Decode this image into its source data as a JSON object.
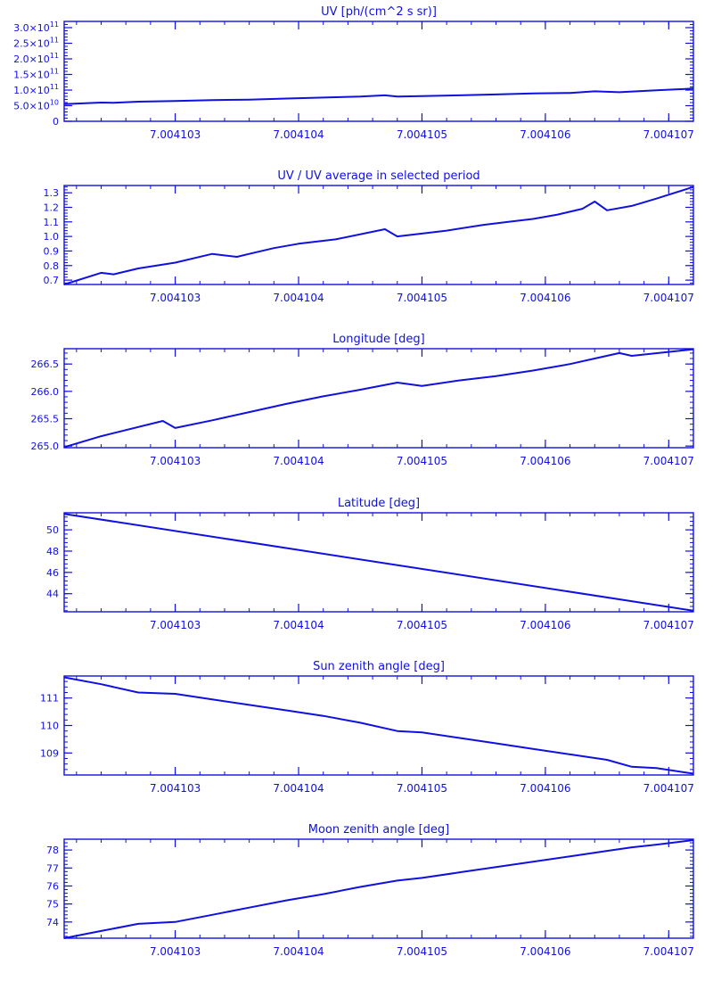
{
  "colors": {
    "ink": "#1010e0",
    "background": "#ffffff"
  },
  "chart_data": [
    {
      "type": "line",
      "title": "UV [ph/(cm^2 s sr)]",
      "xlim": [
        7.0041021,
        7.0041072
      ],
      "xticks": [
        7.004103,
        7.004104,
        7.004105,
        7.004106,
        7.004107
      ],
      "xtick_labels": [
        "7.004103",
        "7.004104",
        "7.004105",
        "7.004106",
        "7.004107"
      ],
      "ylim": [
        0,
        320000000000.0
      ],
      "yticks": [
        0,
        50000000000.0,
        100000000000.0,
        150000000000.0,
        200000000000.0,
        250000000000.0,
        300000000000.0
      ],
      "ytick_labels": [
        {
          "mant": "0",
          "exp": ""
        },
        {
          "mant": "5.0×10",
          "exp": "10"
        },
        {
          "mant": "1.0×10",
          "exp": "11"
        },
        {
          "mant": "1.5×10",
          "exp": "11"
        },
        {
          "mant": "2.0×10",
          "exp": "11"
        },
        {
          "mant": "2.5×10",
          "exp": "11"
        },
        {
          "mant": "3.0×10",
          "exp": "11"
        }
      ],
      "x": [
        7.0041021,
        7.0041024,
        7.0041025,
        7.0041027,
        7.004103,
        7.0041033,
        7.0041036,
        7.0041039,
        7.0041042,
        7.0041045,
        7.0041047,
        7.0041048,
        7.004105,
        7.0041053,
        7.0041056,
        7.0041059,
        7.0041062,
        7.0041064,
        7.0041066,
        7.0041069,
        7.0041072
      ],
      "y": [
        55000000000.0,
        60000000000.0,
        59000000000.0,
        63000000000.0,
        65000000000.0,
        68000000000.0,
        69000000000.0,
        73000000000.0,
        76000000000.0,
        79000000000.0,
        83000000000.0,
        79000000000.0,
        81000000000.0,
        83000000000.0,
        86000000000.0,
        89000000000.0,
        91000000000.0,
        96000000000.0,
        93000000000.0,
        99000000000.0,
        105000000000.0
      ]
    },
    {
      "type": "line",
      "title": "UV / UV average in selected period",
      "xlim": [
        7.0041021,
        7.0041072
      ],
      "xticks": [
        7.004103,
        7.004104,
        7.004105,
        7.004106,
        7.004107
      ],
      "xtick_labels": [
        "7.004103",
        "7.004104",
        "7.004105",
        "7.004106",
        "7.004107"
      ],
      "ylim": [
        0.67,
        1.35
      ],
      "yticks": [
        0.7,
        0.8,
        0.9,
        1.0,
        1.1,
        1.2,
        1.3
      ],
      "ytick_labels": [
        {
          "mant": "0.7",
          "exp": ""
        },
        {
          "mant": "0.8",
          "exp": ""
        },
        {
          "mant": "0.9",
          "exp": ""
        },
        {
          "mant": "1.0",
          "exp": ""
        },
        {
          "mant": "1.1",
          "exp": ""
        },
        {
          "mant": "1.2",
          "exp": ""
        },
        {
          "mant": "1.3",
          "exp": ""
        }
      ],
      "x": [
        7.0041021,
        7.0041024,
        7.0041025,
        7.0041027,
        7.004103,
        7.0041033,
        7.0041035,
        7.0041036,
        7.0041038,
        7.004104,
        7.0041043,
        7.0041047,
        7.0041048,
        7.004105,
        7.0041052,
        7.0041055,
        7.0041057,
        7.0041059,
        7.0041061,
        7.0041063,
        7.0041064,
        7.0041065,
        7.0041067,
        7.0041069,
        7.0041072
      ],
      "y": [
        0.67,
        0.75,
        0.74,
        0.78,
        0.82,
        0.88,
        0.86,
        0.88,
        0.92,
        0.95,
        0.98,
        1.05,
        1.0,
        1.02,
        1.04,
        1.08,
        1.1,
        1.12,
        1.15,
        1.19,
        1.24,
        1.18,
        1.21,
        1.26,
        1.34
      ]
    },
    {
      "type": "line",
      "title": "Longitude [deg]",
      "xlim": [
        7.0041021,
        7.0041072
      ],
      "xticks": [
        7.004103,
        7.004104,
        7.004105,
        7.004106,
        7.004107
      ],
      "xtick_labels": [
        "7.004103",
        "7.004104",
        "7.004105",
        "7.004106",
        "7.004107"
      ],
      "ylim": [
        264.97,
        266.78
      ],
      "yticks": [
        265.0,
        265.5,
        266.0,
        266.5
      ],
      "ytick_labels": [
        {
          "mant": "265.0",
          "exp": ""
        },
        {
          "mant": "265.5",
          "exp": ""
        },
        {
          "mant": "266.0",
          "exp": ""
        },
        {
          "mant": "266.5",
          "exp": ""
        }
      ],
      "x": [
        7.0041021,
        7.0041024,
        7.0041029,
        7.004103,
        7.0041033,
        7.0041036,
        7.0041039,
        7.0041042,
        7.0041045,
        7.0041048,
        7.004105,
        7.0041053,
        7.0041056,
        7.0041059,
        7.0041062,
        7.0041064,
        7.0041066,
        7.0041067,
        7.0041072
      ],
      "y": [
        264.98,
        265.18,
        265.46,
        265.33,
        265.47,
        265.62,
        265.77,
        265.91,
        266.03,
        266.16,
        266.1,
        266.2,
        266.28,
        266.38,
        266.5,
        266.6,
        266.7,
        266.65,
        266.77
      ]
    },
    {
      "type": "line",
      "title": "Latitude [deg]",
      "xlim": [
        7.0041021,
        7.0041072
      ],
      "xticks": [
        7.004103,
        7.004104,
        7.004105,
        7.004106,
        7.004107
      ],
      "xtick_labels": [
        "7.004103",
        "7.004104",
        "7.004105",
        "7.004106",
        "7.004107"
      ],
      "ylim": [
        42.3,
        51.6
      ],
      "yticks": [
        44,
        46,
        48,
        50
      ],
      "ytick_labels": [
        {
          "mant": "44",
          "exp": ""
        },
        {
          "mant": "46",
          "exp": ""
        },
        {
          "mant": "48",
          "exp": ""
        },
        {
          "mant": "50",
          "exp": ""
        }
      ],
      "x": [
        7.0041021,
        7.0041072
      ],
      "y": [
        51.5,
        42.4
      ]
    },
    {
      "type": "line",
      "title": "Sun zenith angle [deg]",
      "xlim": [
        7.0041021,
        7.0041072
      ],
      "xticks": [
        7.004103,
        7.004104,
        7.004105,
        7.004106,
        7.004107
      ],
      "xtick_labels": [
        "7.004103",
        "7.004104",
        "7.004105",
        "7.004106",
        "7.004107"
      ],
      "ylim": [
        108.2,
        111.8
      ],
      "yticks": [
        109,
        110,
        111
      ],
      "ytick_labels": [
        {
          "mant": "109",
          "exp": ""
        },
        {
          "mant": "110",
          "exp": ""
        },
        {
          "mant": "111",
          "exp": ""
        }
      ],
      "x": [
        7.0041021,
        7.0041024,
        7.0041027,
        7.004103,
        7.0041033,
        7.0041036,
        7.0041039,
        7.0041042,
        7.0041045,
        7.0041048,
        7.004105,
        7.0041053,
        7.0041056,
        7.0041059,
        7.0041062,
        7.0041065,
        7.0041067,
        7.0041069,
        7.0041072
      ],
      "y": [
        111.75,
        111.5,
        111.2,
        111.15,
        110.95,
        110.75,
        110.55,
        110.35,
        110.1,
        109.8,
        109.75,
        109.55,
        109.35,
        109.15,
        108.95,
        108.75,
        108.5,
        108.45,
        108.25
      ]
    },
    {
      "type": "line",
      "title": "Moon zenith angle [deg]",
      "xlim": [
        7.0041021,
        7.0041072
      ],
      "xticks": [
        7.004103,
        7.004104,
        7.004105,
        7.004106,
        7.004107
      ],
      "xtick_labels": [
        "7.004103",
        "7.004104",
        "7.004105",
        "7.004106",
        "7.004107"
      ],
      "ylim": [
        73.1,
        78.6
      ],
      "yticks": [
        74,
        75,
        76,
        77,
        78
      ],
      "ytick_labels": [
        {
          "mant": "74",
          "exp": ""
        },
        {
          "mant": "75",
          "exp": ""
        },
        {
          "mant": "76",
          "exp": ""
        },
        {
          "mant": "77",
          "exp": ""
        },
        {
          "mant": "78",
          "exp": ""
        }
      ],
      "x": [
        7.0041021,
        7.0041024,
        7.0041027,
        7.004103,
        7.0041033,
        7.0041036,
        7.0041039,
        7.0041042,
        7.0041045,
        7.0041048,
        7.004105,
        7.0041053,
        7.0041056,
        7.0041059,
        7.0041062,
        7.0041065,
        7.0041067,
        7.0041069,
        7.0041072
      ],
      "y": [
        73.1,
        73.5,
        73.9,
        74.0,
        74.4,
        74.8,
        75.2,
        75.55,
        75.95,
        76.3,
        76.45,
        76.75,
        77.05,
        77.35,
        77.65,
        77.95,
        78.15,
        78.3,
        78.55
      ]
    }
  ]
}
